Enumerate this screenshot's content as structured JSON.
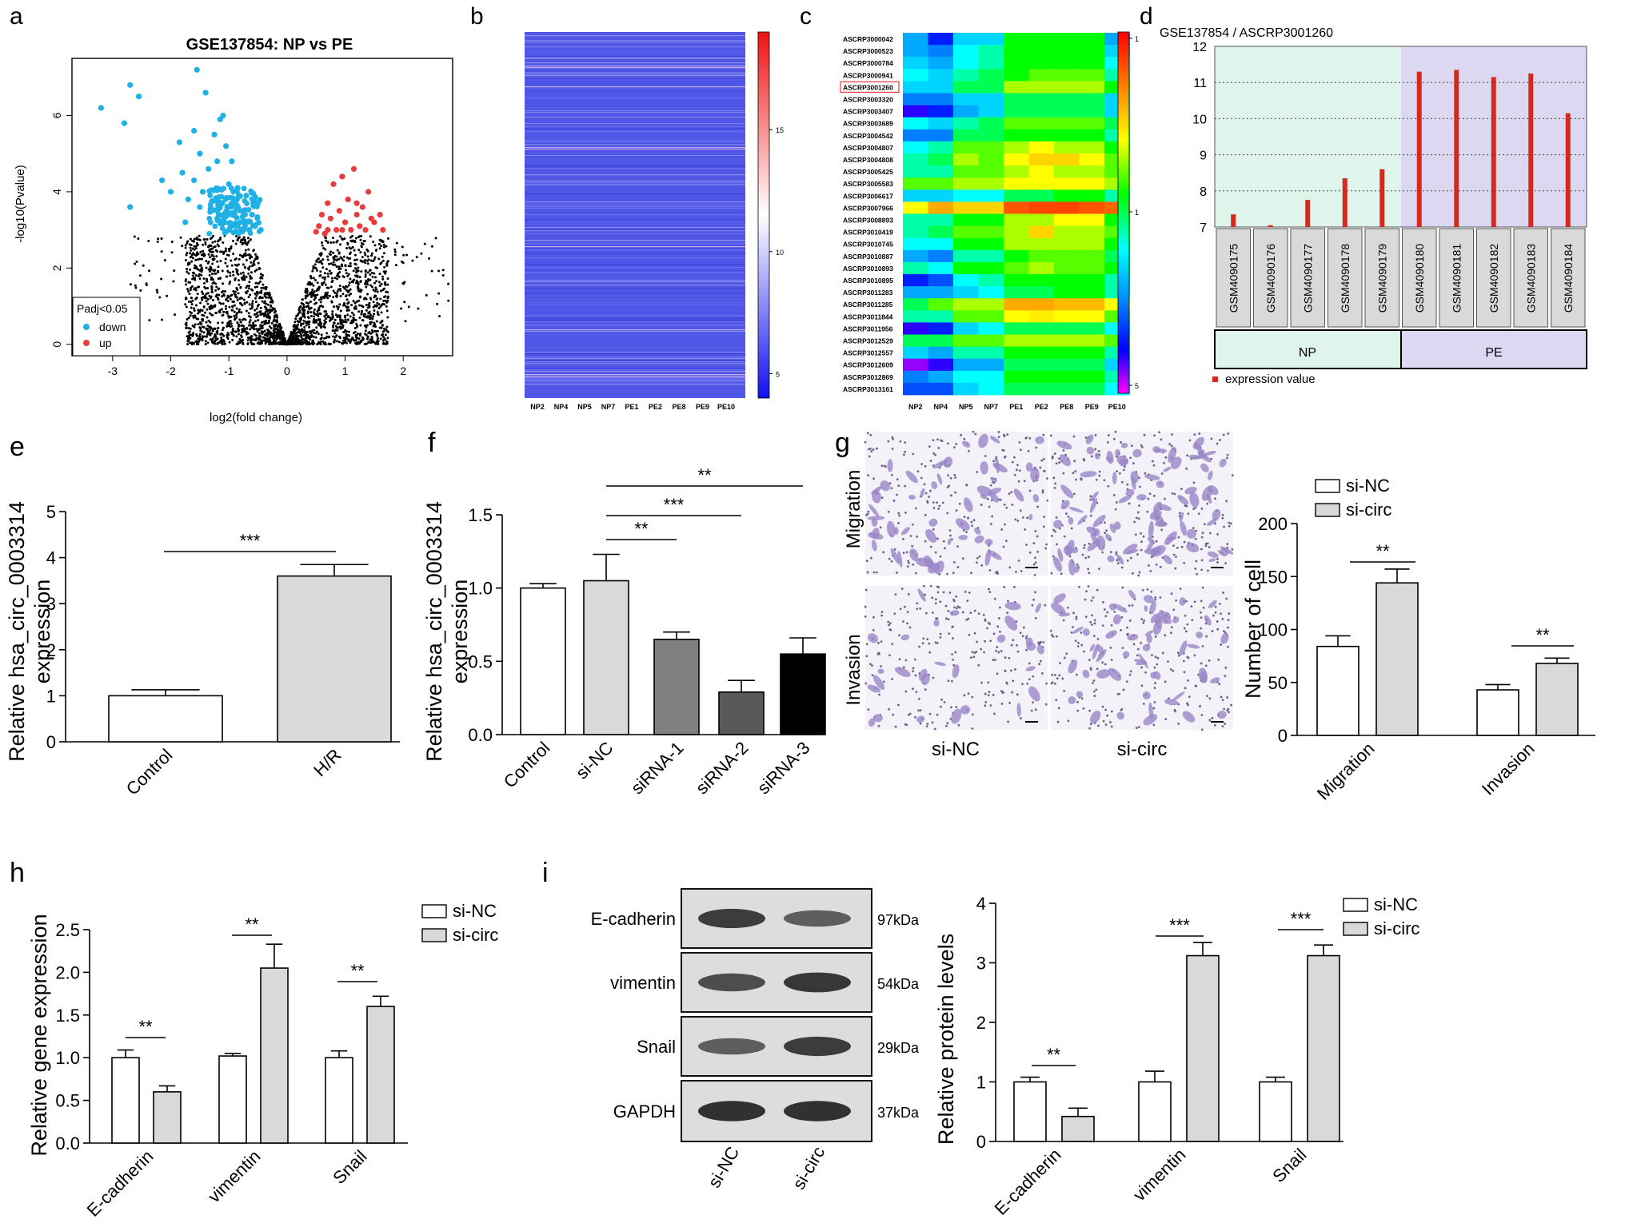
{
  "panel_letters": [
    "a",
    "b",
    "c",
    "d",
    "e",
    "f",
    "g",
    "h",
    "i"
  ],
  "colors": {
    "down": "#1fb1e6",
    "up": "#e83b3b",
    "black": "#000000",
    "grey_bar": "#d9d9d9",
    "dark_grey": "#808080",
    "darker_grey": "#595959",
    "d_bar": "#d42a1e",
    "d_np_bg": "#dff4ea",
    "d_pe_bg": "#dcd8f1",
    "cell_stain": "#9a86c7"
  },
  "chart_data": [
    {
      "id": "a",
      "type": "scatter",
      "title": "GSE137854: NP vs PE",
      "xlabel": "log2(fold change)",
      "ylabel": "-log10(Pvalue)",
      "xlim": [
        -3.7,
        2.85
      ],
      "ylim": [
        -0.3,
        7.5
      ],
      "xticks": [
        -3,
        -2,
        -1,
        0,
        1,
        2
      ],
      "yticks": [
        0,
        2,
        4,
        6
      ],
      "legend": {
        "title": "Padj<0.05",
        "entries": [
          "down",
          "up"
        ],
        "placement": "bottom-left"
      },
      "down_points": [
        [
          -3.2,
          6.2
        ],
        [
          -2.8,
          5.8
        ],
        [
          -2.7,
          6.8
        ],
        [
          -2.55,
          6.5
        ],
        [
          -2.7,
          3.6
        ],
        [
          -2.15,
          4.3
        ],
        [
          -2.0,
          4.0
        ],
        [
          -1.85,
          5.3
        ],
        [
          -1.8,
          4.5
        ],
        [
          -1.7,
          3.8
        ],
        [
          -1.6,
          4.3
        ],
        [
          -1.55,
          7.2
        ],
        [
          -1.5,
          5.0
        ],
        [
          -1.45,
          4.0
        ],
        [
          -1.4,
          6.6
        ],
        [
          -1.35,
          4.6
        ],
        [
          -1.3,
          3.5
        ],
        [
          -1.25,
          5.5
        ],
        [
          -1.2,
          4.8
        ],
        [
          -1.15,
          5.9
        ],
        [
          -1.1,
          6.0
        ],
        [
          -1.05,
          5.2
        ],
        [
          -1.0,
          4.2
        ],
        [
          -0.95,
          4.8
        ],
        [
          -0.9,
          3.7
        ],
        [
          -0.85,
          4.1
        ],
        [
          -0.8,
          3.2
        ],
        [
          -1.0,
          3.0
        ],
        [
          -0.7,
          3.9
        ],
        [
          -0.6,
          3.4
        ],
        [
          -0.55,
          3.1
        ],
        [
          -0.5,
          3.7
        ],
        [
          -0.45,
          3.0
        ],
        [
          -1.75,
          3.2
        ],
        [
          -1.5,
          3.6
        ],
        [
          -1.2,
          3.3
        ],
        [
          -0.95,
          3.4
        ],
        [
          -0.75,
          3.5
        ],
        [
          -0.65,
          3.0
        ],
        [
          -1.6,
          5.6
        ]
      ],
      "up_points": [
        [
          0.55,
          3.1
        ],
        [
          0.6,
          3.4
        ],
        [
          0.65,
          2.9
        ],
        [
          0.7,
          3.7
        ],
        [
          0.75,
          3.3
        ],
        [
          0.8,
          4.2
        ],
        [
          0.85,
          3.0
        ],
        [
          0.9,
          3.5
        ],
        [
          0.95,
          4.4
        ],
        [
          1.0,
          3.2
        ],
        [
          1.05,
          3.8
        ],
        [
          1.1,
          3.0
        ],
        [
          1.15,
          4.6
        ],
        [
          1.2,
          3.4
        ],
        [
          1.25,
          3.1
        ],
        [
          1.3,
          3.6
        ],
        [
          1.35,
          3.0
        ],
        [
          1.4,
          4.0
        ],
        [
          1.5,
          3.2
        ],
        [
          1.6,
          3.4
        ],
        [
          1.65,
          3.0
        ],
        [
          0.5,
          2.95
        ],
        [
          0.7,
          3.0
        ],
        [
          0.95,
          3.0
        ],
        [
          1.2,
          3.7
        ],
        [
          1.45,
          3.3
        ]
      ]
    },
    {
      "id": "b",
      "type": "heatmap",
      "x": [
        "NP2",
        "NP4",
        "NP5",
        "NP7",
        "PE1",
        "PE2",
        "PE8",
        "PE9",
        "PE10"
      ],
      "colorbar_ticks": [
        15,
        10,
        5
      ],
      "colorbar_range": [
        4,
        19
      ]
    },
    {
      "id": "c",
      "type": "heatmap",
      "x": [
        "NP2",
        "NP4",
        "NP5",
        "NP7",
        "PE1",
        "PE2",
        "PE8",
        "PE9",
        "PE10"
      ],
      "y": [
        "ASCRP3000042",
        "ASCRP3000523",
        "ASCRP3000784",
        "ASCRP3000941",
        "ASCRP3001260",
        "ASCRP3003320",
        "ASCRP3003407",
        "ASCRP3003689",
        "ASCRP3004542",
        "ASCRP3004807",
        "ASCRP3004808",
        "ASCRP3005425",
        "ASCRP3005583",
        "ASCRP3006617",
        "ASCRP3007966",
        "ASCRP3008893",
        "ASCRP3010419",
        "ASCRP3010745",
        "ASCRP3010887",
        "ASCRP3010893",
        "ASCRP3010895",
        "ASCRP3011283",
        "ASCRP3011285",
        "ASCRP3011844",
        "ASCRP3011956",
        "ASCRP3012529",
        "ASCRP3012557",
        "ASCRP3012609",
        "ASCRP3012869",
        "ASCRP3013161"
      ],
      "highlight_row": "ASCRP3001260",
      "colorbar_ticks": [
        "1",
        "1",
        "5"
      ],
      "values": [
        [
          0.3,
          0.15,
          0.35,
          0.35,
          0.55,
          0.55,
          0.55,
          0.55,
          0.3
        ],
        [
          0.3,
          0.25,
          0.4,
          0.45,
          0.55,
          0.55,
          0.55,
          0.55,
          0.35
        ],
        [
          0.35,
          0.3,
          0.4,
          0.45,
          0.55,
          0.55,
          0.55,
          0.55,
          0.4
        ],
        [
          0.4,
          0.35,
          0.45,
          0.5,
          0.55,
          0.6,
          0.6,
          0.6,
          0.45
        ],
        [
          0.35,
          0.35,
          0.5,
          0.5,
          0.65,
          0.65,
          0.65,
          0.65,
          0.55
        ],
        [
          0.25,
          0.25,
          0.35,
          0.35,
          0.5,
          0.5,
          0.5,
          0.5,
          0.35
        ],
        [
          0.1,
          0.15,
          0.3,
          0.35,
          0.5,
          0.5,
          0.5,
          0.5,
          0.35
        ],
        [
          0.4,
          0.35,
          0.45,
          0.5,
          0.6,
          0.6,
          0.6,
          0.6,
          0.5
        ],
        [
          0.25,
          0.25,
          0.5,
          0.5,
          0.55,
          0.55,
          0.55,
          0.55,
          0.45
        ],
        [
          0.4,
          0.45,
          0.6,
          0.6,
          0.65,
          0.7,
          0.65,
          0.65,
          0.55
        ],
        [
          0.45,
          0.5,
          0.65,
          0.6,
          0.7,
          0.75,
          0.75,
          0.7,
          0.6
        ],
        [
          0.45,
          0.45,
          0.6,
          0.6,
          0.65,
          0.7,
          0.65,
          0.65,
          0.6
        ],
        [
          0.6,
          0.6,
          0.65,
          0.65,
          0.7,
          0.7,
          0.7,
          0.7,
          0.65
        ],
        [
          0.35,
          0.35,
          0.4,
          0.4,
          0.5,
          0.5,
          0.55,
          0.55,
          0.45
        ],
        [
          0.7,
          0.8,
          0.75,
          0.75,
          0.9,
          0.92,
          0.92,
          0.9,
          0.88
        ],
        [
          0.45,
          0.45,
          0.55,
          0.55,
          0.65,
          0.65,
          0.7,
          0.7,
          0.55
        ],
        [
          0.45,
          0.5,
          0.6,
          0.6,
          0.65,
          0.75,
          0.65,
          0.65,
          0.6
        ],
        [
          0.4,
          0.4,
          0.55,
          0.55,
          0.65,
          0.65,
          0.65,
          0.65,
          0.55
        ],
        [
          0.3,
          0.25,
          0.45,
          0.45,
          0.55,
          0.6,
          0.6,
          0.6,
          0.5
        ],
        [
          0.45,
          0.4,
          0.55,
          0.55,
          0.6,
          0.65,
          0.6,
          0.6,
          0.55
        ],
        [
          0.15,
          0.2,
          0.4,
          0.45,
          0.55,
          0.55,
          0.55,
          0.55,
          0.45
        ],
        [
          0.3,
          0.3,
          0.35,
          0.4,
          0.5,
          0.5,
          0.55,
          0.55,
          0.45
        ],
        [
          0.5,
          0.6,
          0.65,
          0.65,
          0.8,
          0.8,
          0.78,
          0.78,
          0.7
        ],
        [
          0.45,
          0.45,
          0.6,
          0.6,
          0.7,
          0.72,
          0.7,
          0.7,
          0.6
        ],
        [
          0.1,
          0.15,
          0.35,
          0.4,
          0.5,
          0.5,
          0.5,
          0.5,
          0.4
        ],
        [
          0.5,
          0.5,
          0.6,
          0.6,
          0.65,
          0.65,
          0.65,
          0.65,
          0.6
        ],
        [
          0.35,
          0.3,
          0.45,
          0.45,
          0.55,
          0.55,
          0.55,
          0.55,
          0.45
        ],
        [
          0.05,
          0.1,
          0.3,
          0.3,
          0.5,
          0.5,
          0.5,
          0.5,
          0.35
        ],
        [
          0.25,
          0.3,
          0.4,
          0.4,
          0.55,
          0.55,
          0.55,
          0.55,
          0.45
        ],
        [
          0.2,
          0.2,
          0.35,
          0.4,
          0.5,
          0.5,
          0.5,
          0.5,
          0.4
        ]
      ]
    },
    {
      "id": "d",
      "type": "bar",
      "title": "GSE137854 / ASCRP3001260",
      "categories": [
        "GSM4090175",
        "GSM4090176",
        "GSM4090177",
        "GSM4090178",
        "GSM4090179",
        "GSM4090180",
        "GSM4090181",
        "GSM4090182",
        "GSM4090183",
        "GSM4090184"
      ],
      "values": [
        7.35,
        7.05,
        7.75,
        8.35,
        8.6,
        11.3,
        11.35,
        11.15,
        11.25,
        10.15
      ],
      "ylim": [
        7,
        12
      ],
      "yticks": [
        7,
        8,
        9,
        10,
        11,
        12
      ],
      "groups": [
        {
          "name": "NP",
          "count": 5
        },
        {
          "name": "PE",
          "count": 5
        }
      ],
      "legend": "expression value"
    },
    {
      "id": "e",
      "type": "bar",
      "categories": [
        "Control",
        "H/R"
      ],
      "values": [
        1.0,
        3.6
      ],
      "errors": [
        0.13,
        0.25
      ],
      "ylabel": "Relative hsa_circ_0003314\nexpression",
      "ylim": [
        0,
        5
      ],
      "yticks": [
        0,
        1,
        2,
        3,
        4,
        5
      ],
      "significance": [
        {
          "from": 0,
          "to": 1,
          "label": "***"
        }
      ]
    },
    {
      "id": "f",
      "type": "bar",
      "categories": [
        "Control",
        "si-NC",
        "siRNA-1",
        "siRNA-2",
        "siRNA-3"
      ],
      "values": [
        1.0,
        1.05,
        0.65,
        0.29,
        0.55
      ],
      "errors": [
        0.03,
        0.18,
        0.05,
        0.08,
        0.11
      ],
      "ylabel": "Relative hsa_circ_0003314\nexpression",
      "ylim": [
        0,
        1.5
      ],
      "yticks": [
        0.0,
        0.5,
        1.0,
        1.5
      ],
      "significance": [
        {
          "from": 1,
          "to": 2,
          "label": "**"
        },
        {
          "from": 1,
          "to": 3,
          "label": "***"
        },
        {
          "from": 1,
          "to": 4,
          "label": "**"
        }
      ]
    },
    {
      "id": "g",
      "type": "bar",
      "image_row_labels": [
        "Migration",
        "Invasion"
      ],
      "image_col_labels": [
        "si-NC",
        "si-circ"
      ],
      "categories": [
        "Migration",
        "Invasion"
      ],
      "series": [
        {
          "name": "si-NC",
          "values": [
            84,
            43
          ],
          "errors": [
            10,
            5
          ]
        },
        {
          "name": "si-circ",
          "values": [
            144,
            68
          ],
          "errors": [
            13,
            5
          ]
        }
      ],
      "ylabel": "Number of cell",
      "ylim": [
        0,
        200
      ],
      "yticks": [
        0,
        50,
        100,
        150,
        200
      ],
      "significance": [
        "**",
        "**"
      ]
    },
    {
      "id": "h",
      "type": "bar",
      "categories": [
        "E-cadherin",
        "vimentin",
        "Snail"
      ],
      "series": [
        {
          "name": "si-NC",
          "values": [
            1.0,
            1.02,
            1.0
          ],
          "errors": [
            0.09,
            0.03,
            0.08
          ]
        },
        {
          "name": "si-circ",
          "values": [
            0.6,
            2.05,
            1.6
          ],
          "errors": [
            0.07,
            0.28,
            0.12
          ]
        }
      ],
      "ylabel": "Relative gene expression",
      "ylim": [
        0,
        2.5
      ],
      "yticks": [
        0.0,
        0.5,
        1.0,
        1.5,
        2.0,
        2.5
      ],
      "significance": [
        "**",
        "**",
        "**"
      ]
    },
    {
      "id": "i",
      "type": "bar",
      "blot_rows": [
        {
          "name": "E-cadherin",
          "kda": "97kDa"
        },
        {
          "name": "vimentin",
          "kda": "54kDa"
        },
        {
          "name": "Snail",
          "kda": "29kDa"
        },
        {
          "name": "GAPDH",
          "kda": "37kDa"
        }
      ],
      "blot_lanes": [
        "si-NC",
        "si-circ"
      ],
      "categories": [
        "E-cadherin",
        "vimentin",
        "Snail"
      ],
      "series": [
        {
          "name": "si-NC",
          "values": [
            1.0,
            1.0,
            1.0
          ],
          "errors": [
            0.08,
            0.18,
            0.08
          ]
        },
        {
          "name": "si-circ",
          "values": [
            0.42,
            3.12,
            3.12
          ],
          "errors": [
            0.14,
            0.22,
            0.18
          ]
        }
      ],
      "ylabel": "Relative protein levels",
      "ylim": [
        0,
        4
      ],
      "yticks": [
        0,
        1,
        2,
        3,
        4
      ],
      "significance": [
        "**",
        "***",
        "***"
      ]
    }
  ]
}
